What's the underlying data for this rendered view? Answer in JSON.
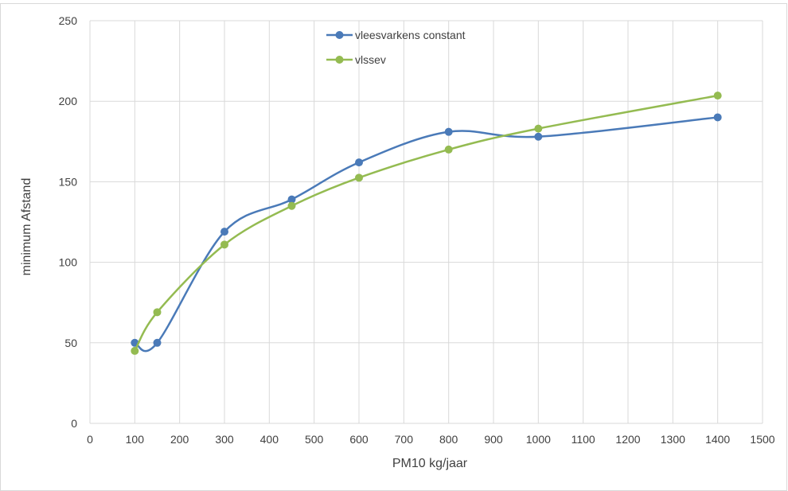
{
  "chart_data": {
    "type": "line",
    "smooth": true,
    "xlabel": "PM10 kg/jaar",
    "ylabel": "minimum Afstand",
    "xlim": [
      0,
      1500
    ],
    "ylim": [
      0,
      250
    ],
    "x_ticks": [
      0,
      100,
      200,
      300,
      400,
      500,
      600,
      700,
      800,
      900,
      1000,
      1100,
      1200,
      1300,
      1400,
      1500
    ],
    "y_ticks": [
      0,
      50,
      100,
      150,
      200,
      250
    ],
    "grid": true,
    "legend_position": "top-center",
    "series": [
      {
        "name": "vleesvarkens constant",
        "color": "#4a7ab8",
        "marker": "circle",
        "x": [
          100,
          150,
          300,
          450,
          600,
          800,
          1000,
          1400
        ],
        "y": [
          50,
          50,
          119,
          139,
          162,
          181,
          178,
          190
        ]
      },
      {
        "name": "vlssev",
        "color": "#94bb51",
        "marker": "circle",
        "x": [
          100,
          150,
          300,
          450,
          600,
          800,
          1000,
          1400
        ],
        "y": [
          45,
          69,
          111,
          135,
          152.5,
          170,
          183,
          203.5
        ]
      }
    ]
  }
}
